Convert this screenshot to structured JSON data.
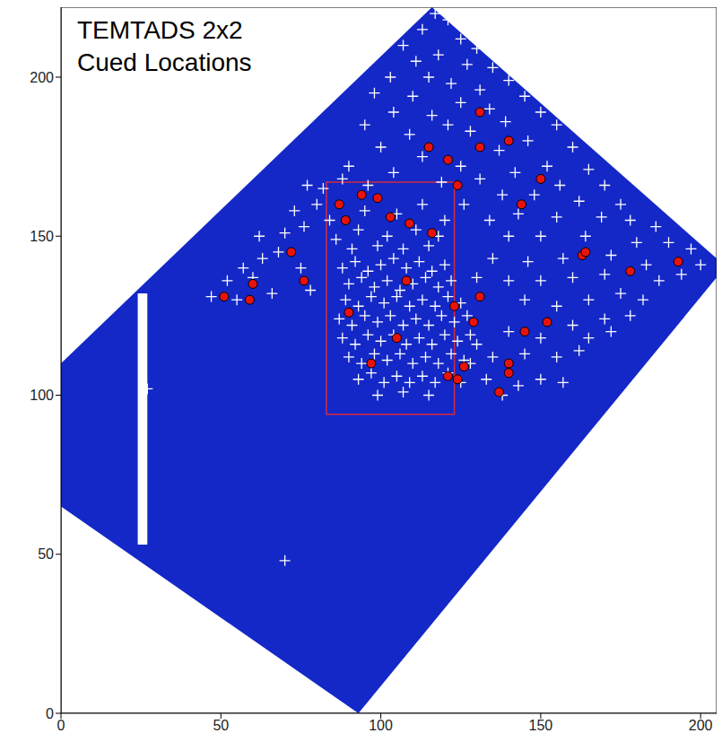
{
  "chart_data": {
    "type": "scatter",
    "title": "TEMTADS 2x2 Cued Locations",
    "xlim": [
      0,
      205
    ],
    "ylim": [
      0,
      222
    ],
    "xticks": [
      0,
      50,
      100,
      150,
      200
    ],
    "yticks": [
      0,
      50,
      100,
      150,
      200
    ],
    "grid": false,
    "legend": false,
    "survey_area": {
      "color": "#1428c8",
      "vertices": [
        [
          0,
          110
        ],
        [
          116,
          222
        ],
        [
          205,
          143
        ],
        [
          205,
          137
        ],
        [
          93,
          0
        ],
        [
          0,
          65
        ]
      ]
    },
    "gap": {
      "xlim": [
        24,
        27
      ],
      "ylim": [
        53,
        132
      ],
      "color": "#ffffff"
    },
    "box": {
      "xlim": [
        83,
        123
      ],
      "ylim": [
        94,
        167
      ],
      "color": "#d42a3c"
    },
    "series": [
      {
        "marker": "plus",
        "color": "#ffffff",
        "points": [
          [
            117,
            220
          ],
          [
            121,
            218
          ],
          [
            113,
            215
          ],
          [
            125,
            212
          ],
          [
            107,
            210
          ],
          [
            130,
            209
          ],
          [
            118,
            207
          ],
          [
            111,
            205
          ],
          [
            127,
            204
          ],
          [
            135,
            203
          ],
          [
            103,
            200
          ],
          [
            115,
            200
          ],
          [
            122,
            198
          ],
          [
            140,
            199
          ],
          [
            131,
            196
          ],
          [
            98,
            195
          ],
          [
            110,
            194
          ],
          [
            145,
            194
          ],
          [
            125,
            192
          ],
          [
            134,
            190
          ],
          [
            104,
            189
          ],
          [
            116,
            188
          ],
          [
            150,
            189
          ],
          [
            139,
            186
          ],
          [
            95,
            185
          ],
          [
            121,
            185
          ],
          [
            128,
            183
          ],
          [
            155,
            185
          ],
          [
            109,
            182
          ],
          [
            100,
            178
          ],
          [
            146,
            180
          ],
          [
            137,
            177
          ],
          [
            160,
            178
          ],
          [
            113,
            175
          ],
          [
            125,
            172
          ],
          [
            90,
            172
          ],
          [
            152,
            172
          ],
          [
            142,
            170
          ],
          [
            165,
            171
          ],
          [
            104,
            170
          ],
          [
            131,
            168
          ],
          [
            119,
            167
          ],
          [
            96,
            166
          ],
          [
            156,
            166
          ],
          [
            170,
            166
          ],
          [
            82,
            165
          ],
          [
            88,
            168
          ],
          [
            77,
            166
          ],
          [
            138,
            163
          ],
          [
            148,
            163
          ],
          [
            162,
            161
          ],
          [
            175,
            160
          ],
          [
            126,
            160
          ],
          [
            113,
            160
          ],
          [
            80,
            160
          ],
          [
            73,
            158
          ],
          [
            169,
            156
          ],
          [
            155,
            156
          ],
          [
            143,
            157
          ],
          [
            134,
            155
          ],
          [
            178,
            155
          ],
          [
            186,
            153
          ],
          [
            120,
            155
          ],
          [
            76,
            153
          ],
          [
            70,
            151
          ],
          [
            62,
            150
          ],
          [
            164,
            150
          ],
          [
            150,
            150
          ],
          [
            140,
            150
          ],
          [
            180,
            148
          ],
          [
            190,
            148
          ],
          [
            197,
            146
          ],
          [
            68,
            145
          ],
          [
            63,
            143
          ],
          [
            57,
            140
          ],
          [
            172,
            144
          ],
          [
            157,
            143
          ],
          [
            146,
            142
          ],
          [
            135,
            143
          ],
          [
            183,
            141
          ],
          [
            194,
            138
          ],
          [
            200,
            141
          ],
          [
            75,
            140
          ],
          [
            52,
            136
          ],
          [
            60,
            137
          ],
          [
            47,
            131
          ],
          [
            55,
            130
          ],
          [
            187,
            136
          ],
          [
            170,
            138
          ],
          [
            160,
            137
          ],
          [
            150,
            136
          ],
          [
            140,
            136
          ],
          [
            130,
            137
          ],
          [
            78,
            133
          ],
          [
            66,
            132
          ],
          [
            145,
            130
          ],
          [
            155,
            128
          ],
          [
            165,
            130
          ],
          [
            175,
            132
          ],
          [
            182,
            130
          ],
          [
            170,
            124
          ],
          [
            160,
            122
          ],
          [
            150,
            118
          ],
          [
            140,
            120
          ],
          [
            145,
            113
          ],
          [
            155,
            112
          ],
          [
            162,
            114
          ],
          [
            150,
            105
          ],
          [
            143,
            103
          ],
          [
            138,
            100
          ],
          [
            133,
            105
          ],
          [
            128,
            110
          ],
          [
            135,
            112
          ],
          [
            130,
            116
          ],
          [
            157,
            104
          ],
          [
            165,
            118
          ],
          [
            172,
            120
          ],
          [
            178,
            125
          ],
          [
            27,
            102
          ],
          [
            70,
            48
          ],
          [
            88,
            140
          ],
          [
            92,
            142
          ],
          [
            96,
            139
          ],
          [
            100,
            141
          ],
          [
            104,
            143
          ],
          [
            108,
            140
          ],
          [
            112,
            142
          ],
          [
            116,
            139
          ],
          [
            120,
            141
          ],
          [
            90,
            135
          ],
          [
            94,
            137
          ],
          [
            98,
            134
          ],
          [
            102,
            136
          ],
          [
            106,
            133
          ],
          [
            110,
            135
          ],
          [
            114,
            137
          ],
          [
            118,
            134
          ],
          [
            122,
            136
          ],
          [
            89,
            130
          ],
          [
            93,
            128
          ],
          [
            97,
            131
          ],
          [
            101,
            129
          ],
          [
            105,
            131
          ],
          [
            109,
            128
          ],
          [
            113,
            130
          ],
          [
            117,
            128
          ],
          [
            121,
            131
          ],
          [
            125,
            129
          ],
          [
            87,
            124
          ],
          [
            91,
            122
          ],
          [
            95,
            125
          ],
          [
            99,
            123
          ],
          [
            103,
            125
          ],
          [
            107,
            122
          ],
          [
            111,
            124
          ],
          [
            115,
            122
          ],
          [
            119,
            125
          ],
          [
            123,
            123
          ],
          [
            127,
            125
          ],
          [
            88,
            118
          ],
          [
            92,
            116
          ],
          [
            96,
            119
          ],
          [
            100,
            117
          ],
          [
            104,
            119
          ],
          [
            108,
            116
          ],
          [
            112,
            118
          ],
          [
            116,
            116
          ],
          [
            120,
            119
          ],
          [
            124,
            117
          ],
          [
            128,
            119
          ],
          [
            90,
            112
          ],
          [
            94,
            110
          ],
          [
            98,
            113
          ],
          [
            102,
            111
          ],
          [
            106,
            113
          ],
          [
            110,
            110
          ],
          [
            114,
            112
          ],
          [
            118,
            110
          ],
          [
            122,
            113
          ],
          [
            126,
            111
          ],
          [
            93,
            105
          ],
          [
            97,
            107
          ],
          [
            101,
            104
          ],
          [
            105,
            106
          ],
          [
            109,
            104
          ],
          [
            113,
            106
          ],
          [
            117,
            104
          ],
          [
            121,
            107
          ],
          [
            125,
            104
          ],
          [
            99,
            100
          ],
          [
            107,
            101
          ],
          [
            115,
            100
          ],
          [
            91,
            146
          ],
          [
            99,
            147
          ],
          [
            107,
            146
          ],
          [
            115,
            147
          ],
          [
            93,
            152
          ],
          [
            102,
            150
          ],
          [
            111,
            152
          ],
          [
            86,
            149
          ],
          [
            118,
            150
          ],
          [
            95,
            158
          ],
          [
            105,
            157
          ],
          [
            84,
            155
          ]
        ]
      },
      {
        "marker": "circle",
        "color": "#e8120c",
        "points": [
          [
            87,
            160
          ],
          [
            89,
            155
          ],
          [
            94,
            163
          ],
          [
            99,
            162
          ],
          [
            103,
            156
          ],
          [
            109,
            154
          ],
          [
            116,
            151
          ],
          [
            124,
            166
          ],
          [
            115,
            178
          ],
          [
            121,
            174
          ],
          [
            131,
            178
          ],
          [
            131,
            189
          ],
          [
            140,
            180
          ],
          [
            150,
            168
          ],
          [
            144,
            160
          ],
          [
            163,
            144
          ],
          [
            164,
            145
          ],
          [
            178,
            139
          ],
          [
            193,
            142
          ],
          [
            72,
            145
          ],
          [
            76,
            136
          ],
          [
            60,
            135
          ],
          [
            59,
            130
          ],
          [
            51,
            131
          ],
          [
            108,
            136
          ],
          [
            90,
            126
          ],
          [
            105,
            118
          ],
          [
            97,
            110
          ],
          [
            123,
            128
          ],
          [
            131,
            131
          ],
          [
            129,
            123
          ],
          [
            152,
            123
          ],
          [
            145,
            120
          ],
          [
            126,
            109
          ],
          [
            121,
            106
          ],
          [
            124,
            105
          ],
          [
            140,
            110
          ],
          [
            140,
            107
          ],
          [
            137,
            101
          ]
        ]
      }
    ]
  }
}
